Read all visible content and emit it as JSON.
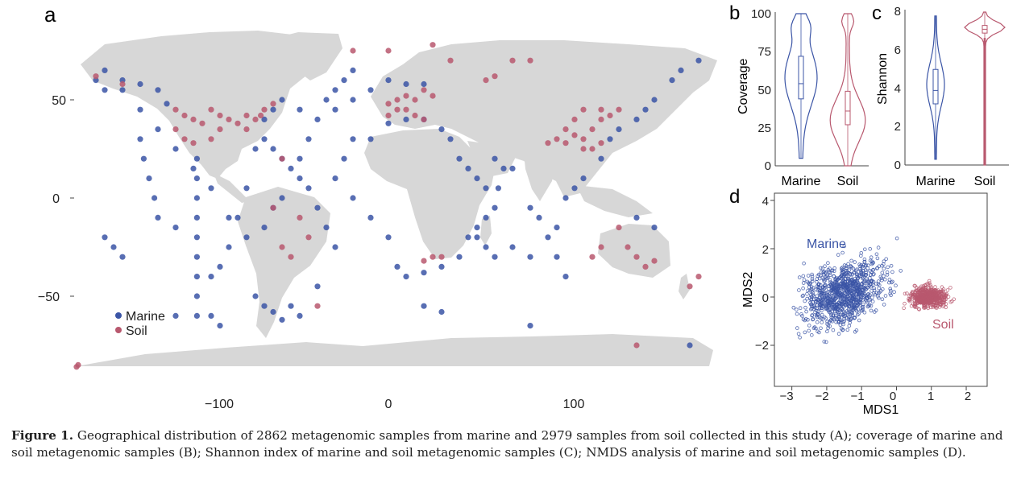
{
  "panels": {
    "a": {
      "label": "a",
      "legend": [
        {
          "name": "Marine",
          "color": "#3b55a6"
        },
        {
          "name": "Soil",
          "color": "#b8586e"
        }
      ]
    },
    "b": {
      "label": "b"
    },
    "c": {
      "label": "c"
    },
    "d": {
      "label": "d",
      "annot_marine": "Marine",
      "annot_soil": "Soil"
    }
  },
  "colors": {
    "marine": "#3b55a6",
    "soil": "#b8586e",
    "land": "#d7d7d7"
  },
  "chart_data": [
    {
      "type": "scatter",
      "panel": "a",
      "x_ticks": [
        "−100",
        "0",
        "100"
      ],
      "y_ticks": [
        "50",
        "0",
        "−50"
      ],
      "x_tick_values": [
        -100,
        0,
        100
      ],
      "y_tick_values": [
        50,
        0,
        -50
      ],
      "xlim": [
        -190,
        190
      ],
      "ylim": [
        -90,
        90
      ],
      "series": [
        {
          "name": "Marine",
          "points": [
            [
              -165,
              60
            ],
            [
              -160,
              65
            ],
            [
              -150,
              60
            ],
            [
              -140,
              58
            ],
            [
              -130,
              55
            ],
            [
              -125,
              48
            ],
            [
              -140,
              30
            ],
            [
              -138,
              20
            ],
            [
              -135,
              10
            ],
            [
              -132,
              0
            ],
            [
              -130,
              -10
            ],
            [
              -120,
              -15
            ],
            [
              -108,
              20
            ],
            [
              -108,
              10
            ],
            [
              -108,
              0
            ],
            [
              -108,
              -10
            ],
            [
              -108,
              -20
            ],
            [
              -108,
              -30
            ],
            [
              -108,
              -40
            ],
            [
              -108,
              -50
            ],
            [
              -108,
              -60
            ],
            [
              -100,
              -40
            ],
            [
              -95,
              -35
            ],
            [
              -90,
              -25
            ],
            [
              -85,
              -10
            ],
            [
              -80,
              5
            ],
            [
              -75,
              25
            ],
            [
              -70,
              30
            ],
            [
              -65,
              25
            ],
            [
              -60,
              20
            ],
            [
              -55,
              15
            ],
            [
              -50,
              10
            ],
            [
              -45,
              5
            ],
            [
              -40,
              -5
            ],
            [
              -35,
              -15
            ],
            [
              -30,
              -25
            ],
            [
              -40,
              -45
            ],
            [
              -55,
              -55
            ],
            [
              -60,
              -62
            ],
            [
              -50,
              -60
            ],
            [
              -70,
              40
            ],
            [
              -65,
              45
            ],
            [
              -60,
              50
            ],
            [
              -50,
              45
            ],
            [
              -40,
              40
            ],
            [
              -30,
              45
            ],
            [
              -20,
              50
            ],
            [
              -10,
              55
            ],
            [
              0,
              60
            ],
            [
              10,
              58
            ],
            [
              20,
              58
            ],
            [
              -20,
              30
            ],
            [
              -25,
              20
            ],
            [
              -30,
              10
            ],
            [
              -20,
              0
            ],
            [
              -10,
              -10
            ],
            [
              0,
              -20
            ],
            [
              5,
              -35
            ],
            [
              10,
              -40
            ],
            [
              20,
              -38
            ],
            [
              30,
              -35
            ],
            [
              40,
              -30
            ],
            [
              45,
              -20
            ],
            [
              50,
              -15
            ],
            [
              55,
              -10
            ],
            [
              60,
              -5
            ],
            [
              62,
              5
            ],
            [
              65,
              15
            ],
            [
              60,
              20
            ],
            [
              70,
              15
            ],
            [
              80,
              -5
            ],
            [
              85,
              -10
            ],
            [
              90,
              -20
            ],
            [
              95,
              -30
            ],
            [
              100,
              -40
            ],
            [
              120,
              20
            ],
            [
              125,
              30
            ],
            [
              130,
              35
            ],
            [
              140,
              40
            ],
            [
              145,
              45
            ],
            [
              150,
              50
            ],
            [
              160,
              60
            ],
            [
              165,
              65
            ],
            [
              175,
              70
            ],
            [
              140,
              -10
            ],
            [
              150,
              -15
            ],
            [
              -75,
              -50
            ],
            [
              -70,
              -55
            ],
            [
              -65,
              -58
            ],
            [
              -80,
              -20
            ],
            [
              -90,
              -10
            ],
            [
              -100,
              5
            ],
            [
              -110,
              15
            ],
            [
              -120,
              25
            ],
            [
              -130,
              35
            ],
            [
              -140,
              45
            ],
            [
              -150,
              55
            ],
            [
              -160,
              55
            ],
            [
              -20,
              65
            ],
            [
              -25,
              60
            ],
            [
              -30,
              55
            ],
            [
              -35,
              50
            ],
            [
              -45,
              30
            ],
            [
              -50,
              20
            ],
            [
              -60,
              0
            ],
            [
              -65,
              -5
            ],
            [
              -70,
              -15
            ],
            [
              -10,
              30
            ],
            [
              0,
              38
            ],
            [
              10,
              40
            ],
            [
              20,
              40
            ],
            [
              30,
              35
            ],
            [
              35,
              30
            ],
            [
              40,
              20
            ],
            [
              45,
              15
            ],
            [
              50,
              10
            ],
            [
              55,
              5
            ],
            [
              100,
              0
            ],
            [
              105,
              5
            ],
            [
              110,
              10
            ],
            [
              95,
              -15
            ],
            [
              80,
              -30
            ],
            [
              70,
              -25
            ],
            [
              60,
              -30
            ],
            [
              55,
              -25
            ],
            [
              50,
              -20
            ],
            [
              20,
              -55
            ],
            [
              30,
              -58
            ],
            [
              80,
              -65
            ],
            [
              170,
              -75
            ],
            [
              -155,
              -25
            ],
            [
              -150,
              -30
            ],
            [
              -160,
              -20
            ],
            [
              -100,
              -60
            ],
            [
              -120,
              -60
            ],
            [
              -95,
              -65
            ]
          ]
        },
        {
          "name": "Soil",
          "points": [
            [
              -165,
              62
            ],
            [
              -150,
              58
            ],
            [
              -120,
              45
            ],
            [
              -115,
              42
            ],
            [
              -110,
              40
            ],
            [
              -105,
              38
            ],
            [
              -100,
              45
            ],
            [
              -95,
              42
            ],
            [
              -90,
              40
            ],
            [
              -85,
              38
            ],
            [
              -80,
              42
            ],
            [
              -75,
              40
            ],
            [
              -120,
              35
            ],
            [
              -115,
              30
            ],
            [
              -110,
              28
            ],
            [
              -100,
              30
            ],
            [
              -95,
              35
            ],
            [
              -80,
              35
            ],
            [
              -72,
              42
            ],
            [
              -70,
              45
            ],
            [
              -65,
              48
            ],
            [
              -60,
              20
            ],
            [
              -65,
              -5
            ],
            [
              -60,
              -25
            ],
            [
              -55,
              -30
            ],
            [
              -50,
              -10
            ],
            [
              -45,
              -20
            ],
            [
              0,
              48
            ],
            [
              5,
              50
            ],
            [
              10,
              52
            ],
            [
              15,
              50
            ],
            [
              20,
              55
            ],
            [
              25,
              52
            ],
            [
              10,
              45
            ],
            [
              15,
              42
            ],
            [
              20,
              40
            ],
            [
              5,
              45
            ],
            [
              0,
              42
            ],
            [
              30,
              -30
            ],
            [
              25,
              -30
            ],
            [
              20,
              -32
            ],
            [
              100,
              35
            ],
            [
              105,
              32
            ],
            [
              110,
              30
            ],
            [
              115,
              35
            ],
            [
              120,
              40
            ],
            [
              105,
              40
            ],
            [
              110,
              25
            ],
            [
              115,
              25
            ],
            [
              120,
              28
            ],
            [
              100,
              28
            ],
            [
              95,
              30
            ],
            [
              90,
              28
            ],
            [
              110,
              45
            ],
            [
              120,
              45
            ],
            [
              125,
              42
            ],
            [
              130,
              45
            ],
            [
              135,
              -25
            ],
            [
              140,
              -30
            ],
            [
              145,
              -35
            ],
            [
              150,
              -32
            ],
            [
              120,
              -25
            ],
            [
              115,
              -30
            ],
            [
              130,
              -15
            ],
            [
              170,
              -45
            ],
            [
              175,
              -40
            ],
            [
              -175,
              -85
            ],
            [
              -178,
              -86
            ],
            [
              55,
              60
            ],
            [
              60,
              62
            ],
            [
              70,
              70
            ],
            [
              80,
              70
            ],
            [
              35,
              70
            ],
            [
              -40,
              -55
            ],
            [
              -20,
              75
            ],
            [
              0,
              75
            ],
            [
              25,
              78
            ],
            [
              140,
              -75
            ]
          ]
        }
      ]
    },
    {
      "type": "violin",
      "panel": "b",
      "ylabel": "Coverage",
      "categories": [
        "Marine",
        "Soil"
      ],
      "y_ticks": [
        "0",
        "25",
        "50",
        "75",
        "100"
      ],
      "ylim": [
        0,
        100
      ],
      "series": [
        {
          "name": "Marine",
          "median": 54,
          "q1": 44,
          "q3": 72,
          "min": 5,
          "max": 100
        },
        {
          "name": "Soil",
          "median": 36,
          "q1": 27,
          "q3": 49,
          "min": 0,
          "max": 100
        }
      ]
    },
    {
      "type": "violin",
      "panel": "c",
      "ylabel": "Shannon",
      "categories": [
        "Marine",
        "Soil"
      ],
      "y_ticks": [
        "0",
        "2",
        "4",
        "6",
        "8"
      ],
      "ylim": [
        0,
        8
      ],
      "series": [
        {
          "name": "Marine",
          "median": 3.9,
          "q1": 3.2,
          "q3": 5.0,
          "min": 0.3,
          "max": 7.8
        },
        {
          "name": "Soil",
          "median": 7.1,
          "q1": 6.9,
          "q3": 7.3,
          "min": 0,
          "max": 8.0
        }
      ]
    },
    {
      "type": "scatter",
      "panel": "d",
      "xlabel": "MDS1",
      "ylabel": "MDS2",
      "x_ticks": [
        "−3",
        "−2",
        "−1",
        "0",
        "1",
        "2"
      ],
      "y_ticks": [
        "4",
        "2",
        "0",
        "−2"
      ],
      "xlim": [
        -3.5,
        2.6
      ],
      "ylim": [
        -3.7,
        4.3
      ],
      "series": [
        {
          "name": "Marine",
          "center": [
            -1.5,
            0.2
          ],
          "spread": [
            0.8,
            0.9
          ]
        },
        {
          "name": "Soil",
          "center": [
            0.9,
            0.0
          ],
          "spread": [
            0.35,
            0.3
          ]
        }
      ]
    }
  ],
  "caption": {
    "label": "Figure 1.",
    "text": " Geographical distribution of 2862 metagenomic samples from marine and 2979 samples from soil collected in this study (A); coverage of marine and soil metagenomic samples (B); Shannon index of marine and soil metagenomic samples (C); NMDS analysis of marine and soil metagenomic samples (D)."
  }
}
